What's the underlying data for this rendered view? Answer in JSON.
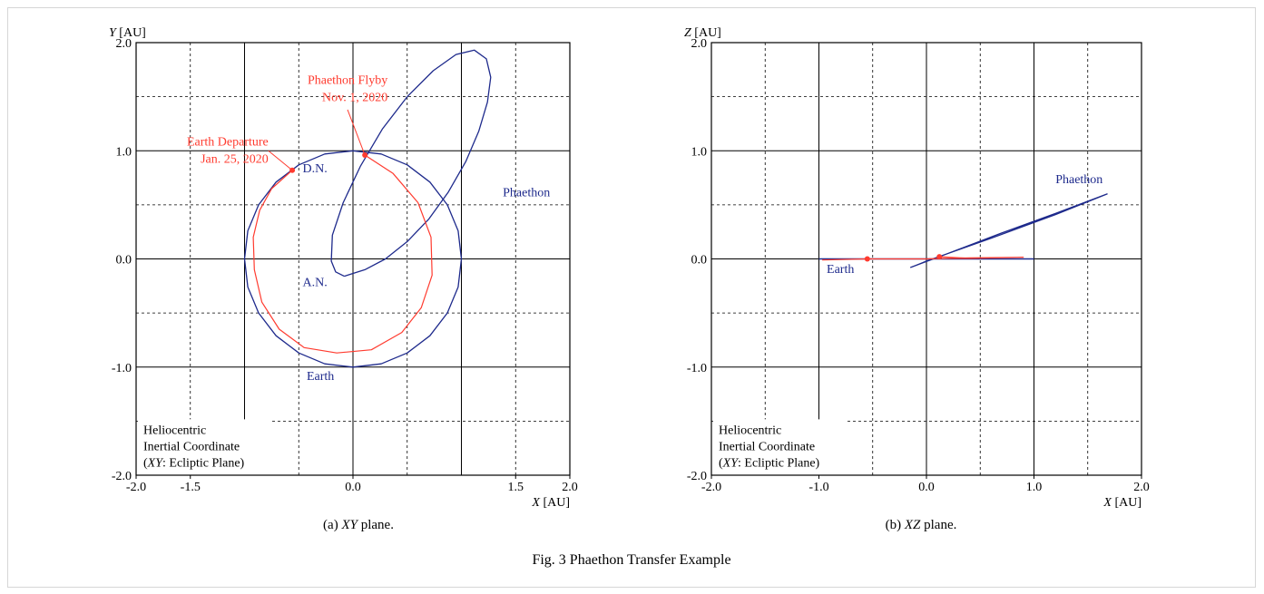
{
  "figure_caption": "Fig. 3  Phaethon Transfer Example",
  "colors": {
    "earth_orbit": "#1e2a8c",
    "phaethon_orbit": "#1e2a8c",
    "transfer": "#ff3b2f",
    "annotation_red": "#ff3b2f",
    "annotation_blue": "#1e2a8c"
  },
  "chart_data": [
    {
      "type": "line",
      "caption_prefix": "(a) ",
      "caption_italic": "XY",
      "caption_suffix": " plane.",
      "xlabel_italic": "X",
      "xlabel_unit": " [AU]",
      "ylabel_italic": "Y",
      "ylabel_unit": " [AU]",
      "xlim": [
        -2.0,
        2.0
      ],
      "ylim": [
        -2.0,
        2.0
      ],
      "x_ticks": [
        -2.0,
        -1.5,
        0.0,
        1.5,
        2.0
      ],
      "x_tick_labels": [
        "-2.0",
        "-1.5",
        "0.0",
        "1.5",
        "2.0"
      ],
      "y_ticks": [
        -2.0,
        -1.0,
        0.0,
        1.0,
        2.0
      ],
      "y_tick_labels": [
        "-2.0",
        "-1.0",
        "0.0",
        "1.0",
        "2.0"
      ],
      "grid": true,
      "series": [
        {
          "name": "Earth",
          "points": [
            [
              1.0,
              0.0
            ],
            [
              0.97,
              0.26
            ],
            [
              0.87,
              0.5
            ],
            [
              0.71,
              0.71
            ],
            [
              0.5,
              0.87
            ],
            [
              0.26,
              0.97
            ],
            [
              0.0,
              1.0
            ],
            [
              -0.26,
              0.97
            ],
            [
              -0.5,
              0.87
            ],
            [
              -0.71,
              0.71
            ],
            [
              -0.87,
              0.5
            ],
            [
              -0.97,
              0.26
            ],
            [
              -1.0,
              0.0
            ],
            [
              -0.97,
              -0.26
            ],
            [
              -0.87,
              -0.5
            ],
            [
              -0.71,
              -0.71
            ],
            [
              -0.5,
              -0.87
            ],
            [
              -0.26,
              -0.97
            ],
            [
              0.0,
              -1.0
            ],
            [
              0.26,
              -0.97
            ],
            [
              0.5,
              -0.87
            ],
            [
              0.71,
              -0.71
            ],
            [
              0.87,
              -0.5
            ],
            [
              0.97,
              -0.26
            ],
            [
              1.0,
              0.0
            ]
          ]
        },
        {
          "name": "Phaethon",
          "points": [
            [
              -0.08,
              -0.16
            ],
            [
              0.11,
              -0.1
            ],
            [
              0.3,
              0.0
            ],
            [
              0.5,
              0.16
            ],
            [
              0.7,
              0.37
            ],
            [
              0.88,
              0.62
            ],
            [
              1.04,
              0.9
            ],
            [
              1.16,
              1.18
            ],
            [
              1.24,
              1.45
            ],
            [
              1.27,
              1.68
            ],
            [
              1.23,
              1.85
            ],
            [
              1.12,
              1.93
            ],
            [
              0.95,
              1.89
            ],
            [
              0.74,
              1.74
            ],
            [
              0.5,
              1.5
            ],
            [
              0.27,
              1.2
            ],
            [
              0.07,
              0.86
            ],
            [
              -0.09,
              0.52
            ],
            [
              -0.19,
              0.22
            ],
            [
              -0.2,
              -0.02
            ],
            [
              -0.16,
              -0.12
            ],
            [
              -0.08,
              -0.16
            ]
          ]
        },
        {
          "name": "Transfer",
          "points": [
            [
              -0.56,
              0.82
            ],
            [
              -0.75,
              0.65
            ],
            [
              -0.86,
              0.45
            ],
            [
              -0.92,
              0.2
            ],
            [
              -0.91,
              -0.1
            ],
            [
              -0.84,
              -0.4
            ],
            [
              -0.68,
              -0.65
            ],
            [
              -0.45,
              -0.82
            ],
            [
              -0.15,
              -0.87
            ],
            [
              0.17,
              -0.84
            ],
            [
              0.45,
              -0.68
            ],
            [
              0.63,
              -0.45
            ],
            [
              0.73,
              -0.15
            ],
            [
              0.72,
              0.2
            ],
            [
              0.6,
              0.52
            ],
            [
              0.37,
              0.79
            ],
            [
              0.11,
              0.96
            ]
          ]
        }
      ],
      "markers": [
        [
          -0.56,
          0.82
        ],
        [
          0.11,
          0.96
        ]
      ],
      "annotations": [
        {
          "text_lines": [
            "Earth Departure",
            "Jan. 25, 2020"
          ],
          "color": "red",
          "x": -0.78,
          "y": 1.05,
          "anchor": "end"
        },
        {
          "text_lines": [
            "Phaethon Flyby",
            "Nov. 1, 2020"
          ],
          "color": "red",
          "x": 0.32,
          "y": 1.62,
          "anchor": "end"
        },
        {
          "text_lines": [
            "D.N."
          ],
          "color": "blue",
          "x": -0.35,
          "y": 0.8,
          "anchor": "middle"
        },
        {
          "text_lines": [
            "A.N."
          ],
          "color": "blue",
          "x": -0.35,
          "y": -0.25,
          "anchor": "middle"
        },
        {
          "text_lines": [
            "Phaethon"
          ],
          "color": "blue",
          "x": 1.6,
          "y": 0.58,
          "anchor": "middle"
        },
        {
          "text_lines": [
            "Earth"
          ],
          "color": "blue",
          "x": -0.3,
          "y": -1.12,
          "anchor": "middle"
        }
      ],
      "leaders": [
        {
          "from": [
            -0.78,
            1.0
          ],
          "to": [
            -0.56,
            0.82
          ]
        },
        {
          "from": [
            -0.05,
            1.38
          ],
          "to": [
            0.11,
            0.96
          ]
        }
      ],
      "note_lines": [
        "Heliocentric",
        "Inertial Coordinate"
      ],
      "note_italic": "XY",
      "note_suffix": ": Ecliptic Plane)"
    },
    {
      "type": "line",
      "caption_prefix": "(b) ",
      "caption_italic": "XZ",
      "caption_suffix": " plane.",
      "xlabel_italic": "X",
      "xlabel_unit": " [AU]",
      "ylabel_italic": "Z",
      "ylabel_unit": " [AU]",
      "xlim": [
        -2.0,
        2.0
      ],
      "ylim": [
        -2.0,
        2.0
      ],
      "x_ticks": [
        -2.0,
        -1.0,
        0.0,
        1.0,
        2.0
      ],
      "x_tick_labels": [
        "-2.0",
        "-1.0",
        "0.0",
        "1.0",
        "2.0"
      ],
      "y_ticks": [
        -2.0,
        -1.0,
        0.0,
        1.0,
        2.0
      ],
      "y_tick_labels": [
        "-2.0",
        "-1.0",
        "0.0",
        "1.0",
        "2.0"
      ],
      "grid": true,
      "series": [
        {
          "name": "Earth",
          "points": [
            [
              -1.0,
              0.0
            ],
            [
              1.0,
              0.0
            ]
          ]
        },
        {
          "name": "Phaethon",
          "points": [
            [
              -0.15,
              -0.08
            ],
            [
              0.2,
              0.05
            ],
            [
              0.7,
              0.24
            ],
            [
              1.2,
              0.42
            ],
            [
              1.68,
              0.6
            ],
            [
              1.2,
              0.41
            ],
            [
              0.6,
              0.19
            ],
            [
              0.0,
              -0.02
            ],
            [
              -0.1,
              -0.06
            ],
            [
              -0.15,
              -0.08
            ]
          ]
        },
        {
          "name": "Transfer",
          "points": [
            [
              -0.97,
              -0.01
            ],
            [
              -0.55,
              0.0
            ],
            [
              0.0,
              0.0
            ],
            [
              0.4,
              0.01
            ],
            [
              0.9,
              0.015
            ],
            [
              0.4,
              0.005
            ],
            [
              0.12,
              0.02
            ]
          ]
        }
      ],
      "markers": [
        [
          -0.55,
          0.0
        ],
        [
          0.12,
          0.02
        ]
      ],
      "annotations": [
        {
          "text_lines": [
            "Earth"
          ],
          "color": "blue",
          "x": -0.8,
          "y": -0.13,
          "anchor": "middle"
        },
        {
          "text_lines": [
            "Phaethon"
          ],
          "color": "blue",
          "x": 1.42,
          "y": 0.7,
          "anchor": "middle"
        }
      ],
      "leaders": [],
      "note_lines": [
        "Heliocentric",
        "Inertial Coordinate"
      ],
      "note_italic": "XY",
      "note_suffix": ": Ecliptic Plane)"
    }
  ]
}
